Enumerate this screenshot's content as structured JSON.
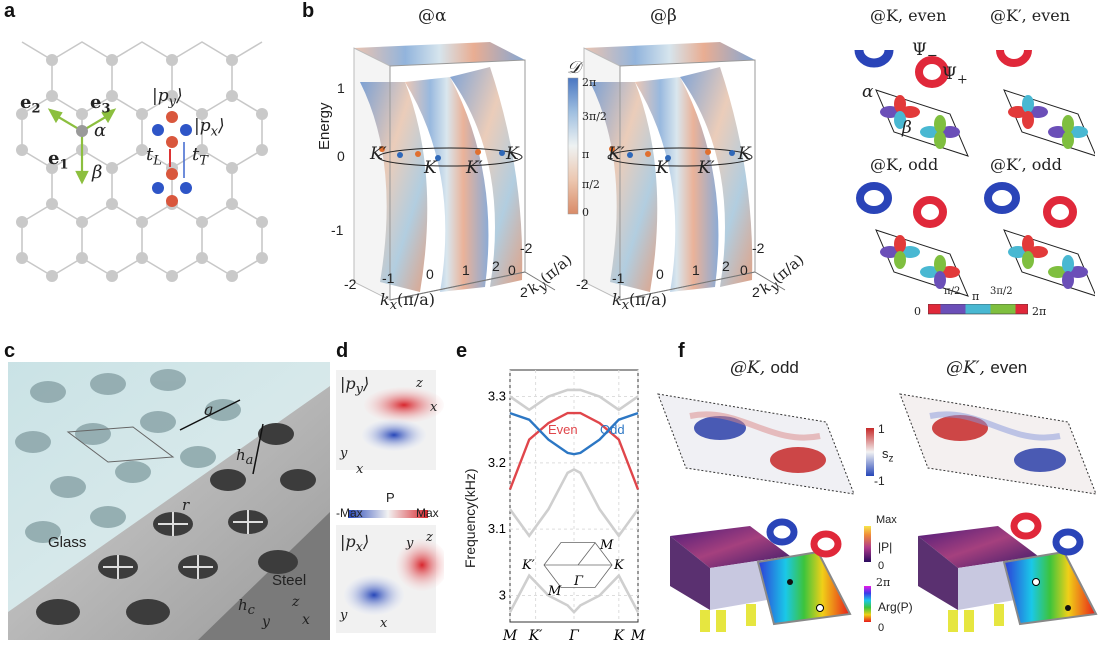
{
  "panels": {
    "a": {
      "label": "a",
      "vec_e1": "e",
      "vec_e1_sub": "1",
      "vec_e2": "e",
      "vec_e2_sub": "2",
      "vec_e3": "e",
      "vec_e3_sub": "3",
      "site_alpha": "α",
      "site_beta": "β",
      "ket_py": "|p",
      "ket_py_sub": "y",
      "ket_py_close": "⟩",
      "ket_px": "|p",
      "ket_px_sub": "x",
      "ket_px_close": "⟩",
      "tL": "t",
      "tL_sub": "L",
      "tT": "t",
      "tT_sub": "T"
    },
    "b": {
      "label": "b",
      "title_alpha": "@α",
      "title_beta": "@β",
      "y_axis_label": "Energy",
      "y_ticks": [
        "1",
        "0",
        "-1"
      ],
      "x_ticks": [
        "-2",
        "-1",
        "0",
        "1",
        "2"
      ],
      "ky_ticks": [
        "-2",
        "0",
        "2"
      ],
      "kx_label": "k",
      "kx_sub": "x",
      "kx_units": "(π/a)",
      "ky_label": "k",
      "ky_sub": "y",
      "ky_units": "(π/a)",
      "K_label": "K",
      "Kp_label": "K′",
      "colorbar_title": "𝒟",
      "colorbar_ticks": [
        "2π",
        "3π/2",
        "π",
        "π/2",
        "0"
      ],
      "orbital_titles": [
        "@K, even",
        "@K′, even",
        "@K, odd",
        "@K′, odd"
      ],
      "psi_minus": "Ψ",
      "psi_minus_sub": "−",
      "psi_plus": "Ψ",
      "psi_plus_sub": "+",
      "cell_alpha": "α",
      "cell_beta": "β",
      "phase_bar_ticks": [
        "0",
        "π/2",
        "π",
        "3π/2",
        "2π"
      ]
    },
    "c": {
      "label": "c",
      "a_label": "a",
      "ha_label": "h",
      "ha_sub": "a",
      "r_label": "r",
      "glass_label": "Glass",
      "steel_label": "Steel",
      "hc_label": "h",
      "hc_sub": "c",
      "axis_z": "z",
      "axis_y": "y",
      "axis_x": "x"
    },
    "d": {
      "label": "d",
      "ket_py": "|p",
      "ket_py_sub": "y",
      "ket_px": "|p",
      "ket_px_sub": "x",
      "ket_close": "⟩",
      "colorbar_title": "P",
      "colorbar_min": "-Max",
      "colorbar_max": "Max",
      "axis_z": "z",
      "axis_x": "x",
      "axis_y": "y"
    },
    "e": {
      "label": "e",
      "ylabel": "Frequency(kHz)",
      "y_ticks": [
        "3.3",
        "3.2",
        "3.1",
        "3"
      ],
      "x_ticks": [
        "M",
        "K′",
        "Γ",
        "K",
        "M"
      ],
      "legend_even": "Even",
      "legend_odd": "Odd",
      "bz_labels": [
        "M",
        "K′",
        "Γ",
        "K",
        "M"
      ],
      "colors": {
        "even": "#e0464b",
        "odd": "#2c77c4",
        "other": "#cfcfcf"
      }
    },
    "f": {
      "label": "f",
      "title_left": "@K,",
      "title_left_suffix": "odd",
      "title_right": "@K′,",
      "title_right_suffix": "even",
      "sz_colorbar_max": "1",
      "sz_colorbar_min": "-1",
      "sz_label": "s",
      "sz_sub": "z",
      "absP_max": "Max",
      "absP_label": "|P|",
      "absP_min": "0",
      "argP_max": "2π",
      "argP_label": "Arg(P)",
      "argP_min": "0"
    }
  },
  "chart_data": {
    "type": "line",
    "xlabel": "",
    "ylabel": "Frequency(kHz)",
    "categories": [
      "M",
      "K′",
      "Γ",
      "K",
      "M"
    ],
    "ylim": [
      2.96,
      3.34
    ],
    "series": [
      {
        "name": "Even",
        "x": [
          0,
          0.15,
          0.3,
          0.45,
          0.5,
          0.55,
          0.7,
          0.85,
          1.0
        ],
        "values": [
          3.16,
          3.235,
          3.26,
          3.275,
          3.275,
          3.275,
          3.26,
          3.235,
          3.16
        ]
      },
      {
        "name": "Odd",
        "x": [
          0,
          0.15,
          0.3,
          0.45,
          0.5,
          0.55,
          0.7,
          0.85,
          1.0
        ],
        "values": [
          3.275,
          3.265,
          3.235,
          3.215,
          3.213,
          3.215,
          3.235,
          3.265,
          3.275
        ]
      },
      {
        "x": [
          0,
          0.15,
          0.3,
          0.45,
          0.5,
          0.55,
          0.7,
          0.85,
          1.0
        ],
        "values": [
          3.3,
          3.28,
          3.3,
          3.31,
          3.31,
          3.31,
          3.3,
          3.28,
          3.3
        ]
      },
      {
        "x": [
          0,
          0.15,
          0.3,
          0.45,
          0.5,
          0.55,
          0.7,
          0.85,
          1.0
        ],
        "values": [
          3.13,
          3.09,
          3.13,
          3.185,
          3.19,
          3.185,
          3.13,
          3.09,
          3.13
        ]
      },
      {
        "x": [
          0,
          0.15,
          0.3,
          0.45,
          0.5,
          0.55,
          0.7,
          0.85,
          1.0
        ],
        "values": [
          2.975,
          3.03,
          3.0,
          2.985,
          2.975,
          2.985,
          3.0,
          3.03,
          2.975
        ]
      }
    ]
  }
}
